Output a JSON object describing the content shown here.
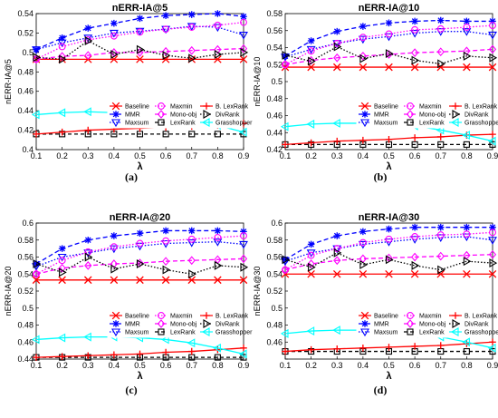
{
  "chart_data": [
    {
      "type": "line",
      "panel_label": "(a)",
      "title": "nERR-IA@5",
      "xlabel": "λ",
      "ylabel": "nERR-IA@5",
      "xlim": [
        0.1,
        0.9
      ],
      "ylim": [
        0.4,
        0.54
      ],
      "xticks": [
        0.1,
        0.2,
        0.3,
        0.4,
        0.5,
        0.6,
        0.7,
        0.8,
        0.9
      ],
      "yticks": [
        0.4,
        0.42,
        0.44,
        0.46,
        0.48,
        0.5,
        0.52,
        0.54
      ],
      "ytick_labels": [
        "0.4",
        "0.42",
        "0.44",
        "0.46",
        "0.48",
        "0.5",
        "0.52",
        "0.54"
      ],
      "x": [
        0.1,
        0.2,
        0.3,
        0.4,
        0.5,
        0.6,
        0.7,
        0.8,
        0.9
      ],
      "series": [
        {
          "name": "Baseline",
          "values": [
            0.493,
            0.493,
            0.493,
            0.493,
            0.493,
            0.493,
            0.493,
            0.493,
            0.493
          ]
        },
        {
          "name": "MMR",
          "values": [
            0.503,
            0.515,
            0.525,
            0.53,
            0.535,
            0.538,
            0.539,
            0.54,
            0.537
          ]
        },
        {
          "name": "Maxsum",
          "values": [
            0.503,
            0.51,
            0.515,
            0.52,
            0.522,
            0.524,
            0.527,
            0.526,
            0.518
          ]
        },
        {
          "name": "Maxmin",
          "values": [
            0.493,
            0.506,
            0.513,
            0.517,
            0.521,
            0.524,
            0.526,
            0.528,
            0.531
          ]
        },
        {
          "name": "Mono-obj",
          "values": [
            0.493,
            0.496,
            0.497,
            0.5,
            0.5,
            0.501,
            0.502,
            0.503,
            0.504
          ]
        },
        {
          "name": "LexRank",
          "values": [
            0.416,
            0.416,
            0.416,
            0.416,
            0.416,
            0.416,
            0.416,
            0.416,
            0.416
          ]
        },
        {
          "name": "B. LexRank",
          "values": [
            0.416,
            0.418,
            0.42,
            0.421,
            0.422,
            0.423,
            0.424,
            0.425,
            0.427
          ]
        },
        {
          "name": "DivRank",
          "values": [
            0.495,
            0.493,
            0.512,
            0.498,
            0.503,
            0.497,
            0.494,
            0.498,
            0.5
          ]
        },
        {
          "name": "Grasshopper",
          "values": [
            0.436,
            0.438,
            0.439,
            0.438,
            0.438,
            0.434,
            0.43,
            0.425,
            0.418
          ]
        }
      ]
    },
    {
      "type": "line",
      "panel_label": "(b)",
      "title": "nERR-IA@10",
      "xlabel": "λ",
      "ylabel": "nERR-IA@10",
      "xlim": [
        0.1,
        0.9
      ],
      "ylim": [
        0.42,
        0.58
      ],
      "xticks": [
        0.1,
        0.2,
        0.3,
        0.4,
        0.5,
        0.6,
        0.7,
        0.8,
        0.9
      ],
      "yticks": [
        0.42,
        0.44,
        0.46,
        0.48,
        0.5,
        0.52,
        0.54,
        0.56,
        0.58
      ],
      "ytick_labels": [
        "0.42",
        "0.44",
        "0.46",
        "0.48",
        "0.5",
        "0.52",
        "0.54",
        "0.56",
        "0.58"
      ],
      "x": [
        0.1,
        0.2,
        0.3,
        0.4,
        0.5,
        0.6,
        0.7,
        0.8,
        0.9
      ],
      "series": [
        {
          "name": "Baseline",
          "values": [
            0.517,
            0.517,
            0.517,
            0.517,
            0.517,
            0.517,
            0.517,
            0.517,
            0.517
          ]
        },
        {
          "name": "MMR",
          "values": [
            0.53,
            0.548,
            0.559,
            0.565,
            0.569,
            0.571,
            0.572,
            0.571,
            0.571
          ]
        },
        {
          "name": "Maxsum",
          "values": [
            0.529,
            0.538,
            0.545,
            0.55,
            0.553,
            0.557,
            0.559,
            0.559,
            0.555
          ]
        },
        {
          "name": "Maxmin",
          "values": [
            0.52,
            0.536,
            0.545,
            0.552,
            0.556,
            0.561,
            0.562,
            0.564,
            0.566
          ]
        },
        {
          "name": "Mono-obj",
          "values": [
            0.52,
            0.525,
            0.528,
            0.53,
            0.532,
            0.534,
            0.535,
            0.536,
            0.538
          ]
        },
        {
          "name": "LexRank",
          "values": [
            0.426,
            0.426,
            0.426,
            0.426,
            0.426,
            0.426,
            0.426,
            0.426,
            0.426
          ]
        },
        {
          "name": "B. LexRank",
          "values": [
            0.426,
            0.428,
            0.43,
            0.431,
            0.432,
            0.434,
            0.435,
            0.437,
            0.438
          ]
        },
        {
          "name": "DivRank",
          "values": [
            0.531,
            0.524,
            0.541,
            0.527,
            0.533,
            0.525,
            0.521,
            0.53,
            0.528
          ]
        },
        {
          "name": "Grasshopper",
          "values": [
            0.447,
            0.45,
            0.451,
            0.451,
            0.45,
            0.448,
            0.443,
            0.437,
            0.43
          ]
        }
      ]
    },
    {
      "type": "line",
      "panel_label": "(c)",
      "title": "nERR-IA@20",
      "xlabel": "λ",
      "ylabel": "nERR-IA@20",
      "xlim": [
        0.1,
        0.9
      ],
      "ylim": [
        0.44,
        0.6
      ],
      "xticks": [
        0.1,
        0.2,
        0.3,
        0.4,
        0.5,
        0.6,
        0.7,
        0.8,
        0.9
      ],
      "yticks": [
        0.44,
        0.46,
        0.48,
        0.5,
        0.52,
        0.54,
        0.56,
        0.58,
        0.6
      ],
      "ytick_labels": [
        "0.44",
        "0.46",
        "0.48",
        "0.5",
        "0.52",
        "0.54",
        "0.56",
        "0.58",
        "0.6"
      ],
      "x": [
        0.1,
        0.2,
        0.3,
        0.4,
        0.5,
        0.6,
        0.7,
        0.8,
        0.9
      ],
      "series": [
        {
          "name": "Baseline",
          "values": [
            0.533,
            0.533,
            0.533,
            0.533,
            0.533,
            0.533,
            0.533,
            0.533,
            0.533
          ]
        },
        {
          "name": "MMR",
          "values": [
            0.552,
            0.57,
            0.58,
            0.585,
            0.588,
            0.591,
            0.591,
            0.591,
            0.59
          ]
        },
        {
          "name": "Maxsum",
          "values": [
            0.549,
            0.56,
            0.565,
            0.57,
            0.573,
            0.576,
            0.577,
            0.578,
            0.575
          ]
        },
        {
          "name": "Maxmin",
          "values": [
            0.54,
            0.556,
            0.566,
            0.572,
            0.576,
            0.579,
            0.581,
            0.583,
            0.585
          ]
        },
        {
          "name": "Mono-obj",
          "values": [
            0.54,
            0.547,
            0.55,
            0.552,
            0.553,
            0.555,
            0.556,
            0.557,
            0.558
          ]
        },
        {
          "name": "LexRank",
          "values": [
            0.442,
            0.442,
            0.442,
            0.442,
            0.442,
            0.442,
            0.442,
            0.442,
            0.442
          ]
        },
        {
          "name": "B. LexRank",
          "values": [
            0.442,
            0.443,
            0.444,
            0.445,
            0.446,
            0.448,
            0.449,
            0.451,
            0.453
          ]
        },
        {
          "name": "DivRank",
          "values": [
            0.552,
            0.542,
            0.56,
            0.546,
            0.552,
            0.545,
            0.54,
            0.55,
            0.548
          ]
        },
        {
          "name": "Grasshopper",
          "values": [
            0.463,
            0.465,
            0.466,
            0.466,
            0.465,
            0.463,
            0.459,
            0.453,
            0.446
          ]
        }
      ]
    },
    {
      "type": "line",
      "panel_label": "(d)",
      "title": "nERR-IA@30",
      "xlabel": "λ",
      "ylabel": "nERR-IA@30",
      "xlim": [
        0.1,
        0.9
      ],
      "ylim": [
        0.44,
        0.6
      ],
      "xticks": [
        0.1,
        0.2,
        0.3,
        0.4,
        0.5,
        0.6,
        0.7,
        0.8,
        0.9
      ],
      "yticks": [
        0.44,
        0.46,
        0.48,
        0.5,
        0.52,
        0.54,
        0.56,
        0.58,
        0.6
      ],
      "ytick_labels": [
        "",
        "0.46",
        "0.48",
        "0.5",
        "0.52",
        "0.54",
        "0.56",
        "0.58",
        "0.6"
      ],
      "x": [
        0.1,
        0.2,
        0.3,
        0.4,
        0.5,
        0.6,
        0.7,
        0.8,
        0.9
      ],
      "series": [
        {
          "name": "Baseline",
          "values": [
            0.54,
            0.54,
            0.54,
            0.54,
            0.54,
            0.54,
            0.54,
            0.54,
            0.54
          ]
        },
        {
          "name": "MMR",
          "values": [
            0.557,
            0.575,
            0.585,
            0.59,
            0.593,
            0.595,
            0.595,
            0.595,
            0.595
          ]
        },
        {
          "name": "Maxsum",
          "values": [
            0.555,
            0.565,
            0.57,
            0.575,
            0.578,
            0.581,
            0.583,
            0.584,
            0.58
          ]
        },
        {
          "name": "Maxmin",
          "values": [
            0.545,
            0.562,
            0.57,
            0.577,
            0.581,
            0.584,
            0.586,
            0.587,
            0.589
          ]
        },
        {
          "name": "Mono-obj",
          "values": [
            0.545,
            0.552,
            0.556,
            0.558,
            0.559,
            0.56,
            0.561,
            0.562,
            0.563
          ]
        },
        {
          "name": "LexRank",
          "values": [
            0.449,
            0.449,
            0.449,
            0.449,
            0.449,
            0.449,
            0.449,
            0.449,
            0.449
          ]
        },
        {
          "name": "B. LexRank",
          "values": [
            0.449,
            0.451,
            0.452,
            0.453,
            0.454,
            0.455,
            0.456,
            0.458,
            0.46
          ]
        },
        {
          "name": "DivRank",
          "values": [
            0.557,
            0.548,
            0.565,
            0.551,
            0.557,
            0.55,
            0.545,
            0.555,
            0.553
          ]
        },
        {
          "name": "Grasshopper",
          "values": [
            0.47,
            0.473,
            0.474,
            0.474,
            0.473,
            0.47,
            0.466,
            0.46,
            0.453
          ]
        }
      ]
    }
  ],
  "legend": {
    "placement": "bottom-right",
    "columns": [
      [
        "Baseline",
        "MMR",
        "Maxsum"
      ],
      [
        "Maxmin",
        "Mono-obj",
        "LexRank"
      ],
      [
        "B. LexRank",
        "DivRank",
        "Grasshopper"
      ]
    ]
  },
  "styles": {
    "Baseline": {
      "color": "#ff0000",
      "dash": "",
      "marker": "x"
    },
    "MMR": {
      "color": "#0000ff",
      "dash": "5,3",
      "marker": "star"
    },
    "Maxsum": {
      "color": "#0000ff",
      "dash": "1.5,2",
      "marker": "tri-down"
    },
    "Maxmin": {
      "color": "#ff00ff",
      "dash": "1.5,2",
      "marker": "circle"
    },
    "Mono-obj": {
      "color": "#ff00ff",
      "dash": "5,3",
      "marker": "diamond"
    },
    "LexRank": {
      "color": "#000000",
      "dash": "4,3",
      "marker": "square"
    },
    "B. LexRank": {
      "color": "#ff0000",
      "dash": "",
      "marker": "plus"
    },
    "DivRank": {
      "color": "#000000",
      "dash": "1.5,2",
      "marker": "tri-right"
    },
    "Grasshopper": {
      "color": "#00ffff",
      "dash": "",
      "marker": "tri-left"
    }
  }
}
